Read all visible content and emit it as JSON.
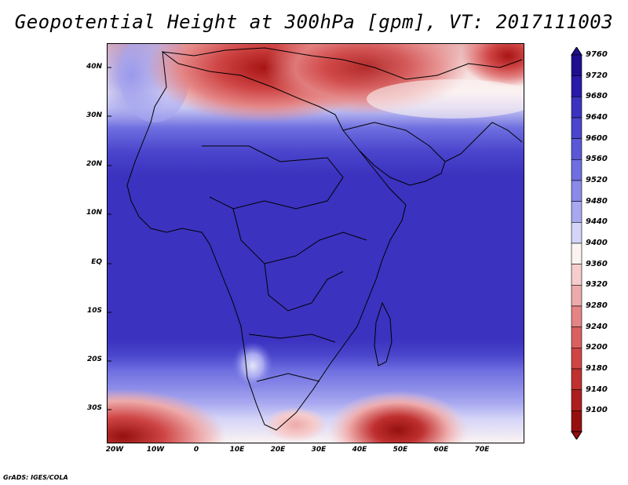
{
  "title": "Geopotential Height at 300hPa [gpm], VT: 2017111003",
  "credit": "GrADS: IGES/COLA",
  "lat_labels": [
    "40N",
    "30N",
    "20N",
    "10N",
    "EQ",
    "10S",
    "20S",
    "30S"
  ],
  "lon_labels": [
    "20W",
    "10W",
    "0",
    "10E",
    "20E",
    "30E",
    "40E",
    "50E",
    "60E",
    "70E"
  ],
  "colorbar": {
    "levels": [
      "9760",
      "9720",
      "9680",
      "9640",
      "9600",
      "9560",
      "9520",
      "9480",
      "9440",
      "9400",
      "9360",
      "9320",
      "9280",
      "9240",
      "9200",
      "9180",
      "9140",
      "9100"
    ],
    "colors": [
      "#1f0f8f",
      "#2a1aa8",
      "#3b32bf",
      "#4a45cc",
      "#5a58d6",
      "#6f6fe0",
      "#8a8ae8",
      "#a8a8f0",
      "#d4d4f8",
      "#fbf2f2",
      "#f6cccc",
      "#eeaaaa",
      "#e48484",
      "#da6060",
      "#cf4545",
      "#c03030",
      "#ad1f1f",
      "#961010"
    ]
  }
}
